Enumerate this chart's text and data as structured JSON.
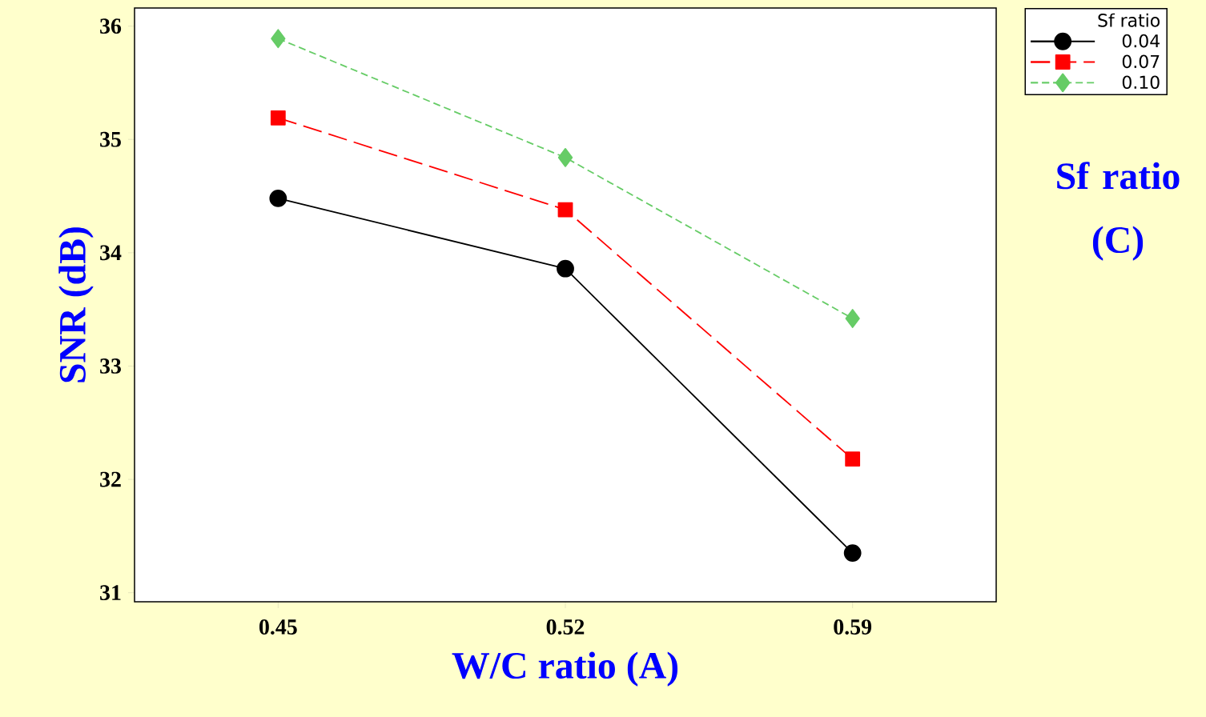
{
  "chart_data": {
    "type": "line",
    "xlabel": "W/C ratio  (A)",
    "ylabel": "SNR (dB)",
    "legend_title": "Sf ratio",
    "annotations": [
      "Sf ratio (C)"
    ],
    "categories": [
      "0.45",
      "0.52",
      "0.59"
    ],
    "series": [
      {
        "name": "0.04",
        "color": "#000000",
        "marker": "circle",
        "line_style": "solid",
        "values": [
          34.48,
          33.86,
          31.35
        ]
      },
      {
        "name": "0.07",
        "color": "#ff0000",
        "marker": "square",
        "line_style": "dashed",
        "values": [
          35.19,
          34.38,
          32.18
        ]
      },
      {
        "name": "0.10",
        "color": "#66cc66",
        "marker": "diamond",
        "line_style": "dotted",
        "values": [
          35.89,
          34.84,
          33.42
        ]
      }
    ],
    "ylim": [
      30.92,
      36.16
    ],
    "yticks": [
      31,
      32,
      33,
      34,
      35,
      36
    ],
    "grid": false,
    "legend": "top right"
  }
}
